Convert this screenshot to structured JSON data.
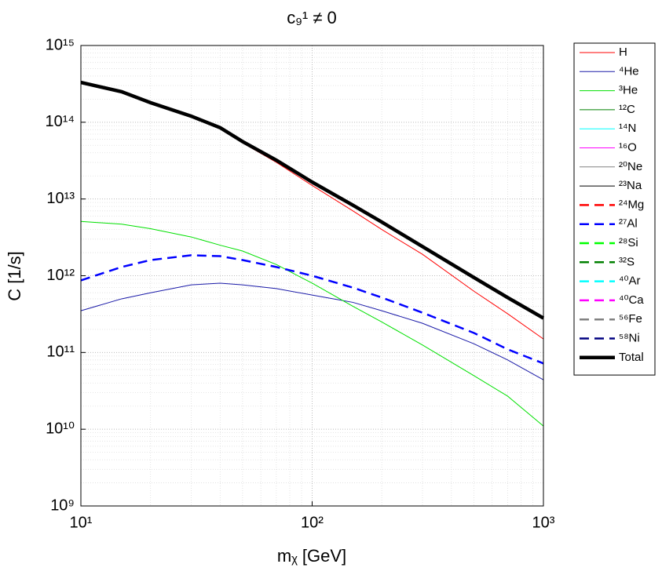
{
  "chart_data": {
    "type": "line",
    "title": "c₉¹ ≠ 0",
    "x_label": "mᵪ [GeV]",
    "y_label": "C [1/s]",
    "x_scale": "log",
    "y_scale": "log",
    "grid": true,
    "legend": "outside-right",
    "xlim": [
      10,
      1000
    ],
    "xticks": [
      {
        "value": 10,
        "label": "10¹"
      },
      {
        "value": 100,
        "label": "10²"
      },
      {
        "value": 1000,
        "label": "10³"
      }
    ],
    "ylim": [
      1000000000.0,
      1000000000000000.0
    ],
    "yticks": [
      {
        "value": 1000000000.0,
        "label": "10⁹"
      },
      {
        "value": 10000000000.0,
        "label": "10¹⁰"
      },
      {
        "value": 100000000000.0,
        "label": "10¹¹"
      },
      {
        "value": 1000000000000.0,
        "label": "10¹²"
      },
      {
        "value": 10000000000000.0,
        "label": "10¹³"
      },
      {
        "value": 100000000000000.0,
        "label": "10¹⁴"
      },
      {
        "value": 1000000000000000.0,
        "label": "10¹⁵"
      }
    ],
    "x": [
      10,
      15,
      20,
      30,
      40,
      50,
      70,
      100,
      150,
      200,
      300,
      500,
      700,
      1000
    ],
    "series": [
      {
        "name": "H",
        "color": "#ff0000",
        "linestyle": "solid",
        "linewidth": 1,
        "values": [
          330000000000000.0,
          250000000000000.0,
          180000000000000.0,
          120000000000000.0,
          85000000000000.0,
          54000000000000.0,
          30000000000000.0,
          15000000000000.0,
          7000000000000.0,
          4000000000000.0,
          1900000000000.0,
          630000000000.0,
          320000000000.0,
          150000000000.0
        ]
      },
      {
        "name": "⁴He",
        "color": "#1a1aa8",
        "linestyle": "solid",
        "linewidth": 1,
        "values": [
          350000000000.0,
          500000000000.0,
          600000000000.0,
          760000000000.0,
          800000000000.0,
          760000000000.0,
          680000000000.0,
          560000000000.0,
          450000000000.0,
          350000000000.0,
          240000000000.0,
          130000000000.0,
          80000000000.0,
          44000000000.0
        ]
      },
      {
        "name": "³He",
        "color": "#00e000",
        "linestyle": "solid",
        "linewidth": 1,
        "values": [
          5100000000000.0,
          4700000000000.0,
          4100000000000.0,
          3200000000000.0,
          2500000000000.0,
          2100000000000.0,
          1400000000000.0,
          800000000000.0,
          400000000000.0,
          250000000000.0,
          125000000000.0,
          50000000000.0,
          27000000000.0,
          11000000000.0
        ]
      },
      {
        "name": "¹²C",
        "color": "#008000",
        "linestyle": "solid",
        "linewidth": 1,
        "values": [
          null,
          null,
          null,
          null,
          null,
          null,
          null,
          null,
          null,
          null,
          null,
          null,
          null,
          null
        ]
      },
      {
        "name": "¹⁴N",
        "color": "#00ffff",
        "linestyle": "solid",
        "linewidth": 1,
        "values": [
          null,
          null,
          null,
          null,
          null,
          null,
          null,
          null,
          null,
          null,
          null,
          null,
          null,
          null
        ]
      },
      {
        "name": "¹⁶O",
        "color": "#ff00ff",
        "linestyle": "solid",
        "linewidth": 1,
        "values": [
          null,
          null,
          null,
          null,
          null,
          null,
          null,
          null,
          null,
          null,
          null,
          null,
          null,
          null
        ]
      },
      {
        "name": "²⁰Ne",
        "color": "#808080",
        "linestyle": "solid",
        "linewidth": 1,
        "values": [
          null,
          null,
          null,
          null,
          null,
          null,
          null,
          null,
          null,
          null,
          null,
          null,
          null,
          null
        ]
      },
      {
        "name": "²³Na",
        "color": "#000000",
        "linestyle": "solid",
        "linewidth": 1,
        "values": [
          null,
          null,
          null,
          null,
          null,
          null,
          null,
          null,
          null,
          null,
          null,
          null,
          null,
          null
        ]
      },
      {
        "name": "²⁴Mg",
        "color": "#ff0000",
        "linestyle": "dashed",
        "linewidth": 2.5,
        "values": [
          null,
          null,
          null,
          null,
          null,
          null,
          null,
          null,
          null,
          null,
          null,
          null,
          null,
          null
        ]
      },
      {
        "name": "²⁷Al",
        "color": "#0000ff",
        "linestyle": "dashed",
        "linewidth": 2.5,
        "values": [
          870000000000.0,
          1300000000000.0,
          1600000000000.0,
          1850000000000.0,
          1800000000000.0,
          1600000000000.0,
          1300000000000.0,
          1000000000000.0,
          700000000000.0,
          520000000000.0,
          330000000000.0,
          180000000000.0,
          110000000000.0,
          72000000000.0
        ]
      },
      {
        "name": "²⁸Si",
        "color": "#00ff00",
        "linestyle": "dashed",
        "linewidth": 2.5,
        "values": [
          null,
          null,
          null,
          null,
          null,
          null,
          null,
          null,
          null,
          null,
          null,
          null,
          null,
          null
        ]
      },
      {
        "name": "³²S",
        "color": "#008000",
        "linestyle": "dashed",
        "linewidth": 2.5,
        "values": [
          null,
          null,
          null,
          null,
          null,
          null,
          null,
          null,
          null,
          null,
          null,
          null,
          null,
          null
        ]
      },
      {
        "name": "⁴⁰Ar",
        "color": "#00ffff",
        "linestyle": "dashed",
        "linewidth": 2.5,
        "values": [
          null,
          null,
          null,
          null,
          null,
          null,
          null,
          null,
          null,
          null,
          null,
          null,
          null,
          null
        ]
      },
      {
        "name": "⁴⁰Ca",
        "color": "#ff00ff",
        "linestyle": "dashed",
        "linewidth": 2.5,
        "values": [
          null,
          null,
          null,
          null,
          null,
          null,
          null,
          null,
          null,
          null,
          null,
          null,
          null,
          null
        ]
      },
      {
        "name": "⁵⁶Fe",
        "color": "#808080",
        "linestyle": "dashed",
        "linewidth": 2.5,
        "values": [
          null,
          null,
          null,
          null,
          null,
          null,
          null,
          null,
          null,
          null,
          null,
          null,
          null,
          null
        ]
      },
      {
        "name": "⁵⁸Ni",
        "color": "#000080",
        "linestyle": "dashed",
        "linewidth": 2.5,
        "values": [
          null,
          null,
          null,
          null,
          null,
          null,
          null,
          null,
          null,
          null,
          null,
          null,
          null,
          null
        ]
      },
      {
        "name": "Total",
        "color": "#000000",
        "linestyle": "solid",
        "linewidth": 4.5,
        "values": [
          330000000000000.0,
          250000000000000.0,
          180000000000000.0,
          120000000000000.0,
          85000000000000.0,
          56000000000000.0,
          32000000000000.0,
          16600000000000.0,
          8300000000000.0,
          5000000000000.0,
          2400000000000.0,
          950000000000.0,
          520000000000.0,
          280000000000.0
        ]
      }
    ]
  }
}
